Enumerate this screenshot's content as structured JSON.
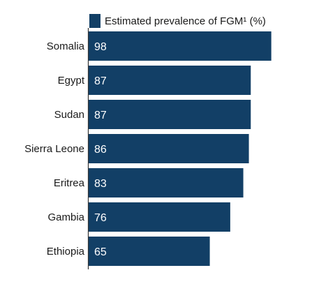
{
  "chart_data": {
    "type": "bar",
    "orientation": "horizontal",
    "categories": [
      "Somalia",
      "Egypt",
      "Sudan",
      "Sierra Leone",
      "Eritrea",
      "Gambia",
      "Ethiopia"
    ],
    "series": [
      {
        "name": "Estimated prevalence of FGM¹ (%)",
        "values": [
          98,
          87,
          87,
          86,
          83,
          76,
          65
        ],
        "color": "#123f66"
      }
    ],
    "data_labels": [
      "98",
      "87",
      "87",
      "86",
      "83",
      "76",
      "65"
    ],
    "xlim": [
      0,
      100
    ],
    "grid": false,
    "legend": "top"
  }
}
